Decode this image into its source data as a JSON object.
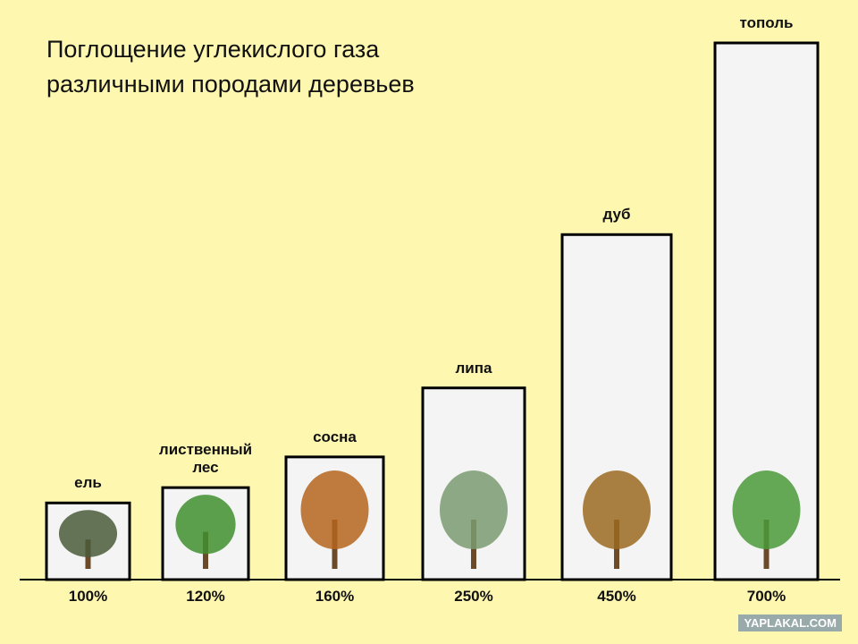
{
  "chart_data": {
    "type": "bar",
    "title": "Поглощение углекислого газа различными породами деревьев",
    "categories": [
      "ель",
      "лиственный лес",
      "сосна",
      "липа",
      "дуб",
      "тополь"
    ],
    "values": [
      100,
      120,
      160,
      250,
      450,
      700
    ],
    "value_labels": [
      "100%",
      "120%",
      "160%",
      "250%",
      "450%",
      "700%"
    ],
    "ylim": [
      0,
      700
    ],
    "color": "#f4f4f4",
    "watermark": "YAPLAKAL.COM"
  }
}
